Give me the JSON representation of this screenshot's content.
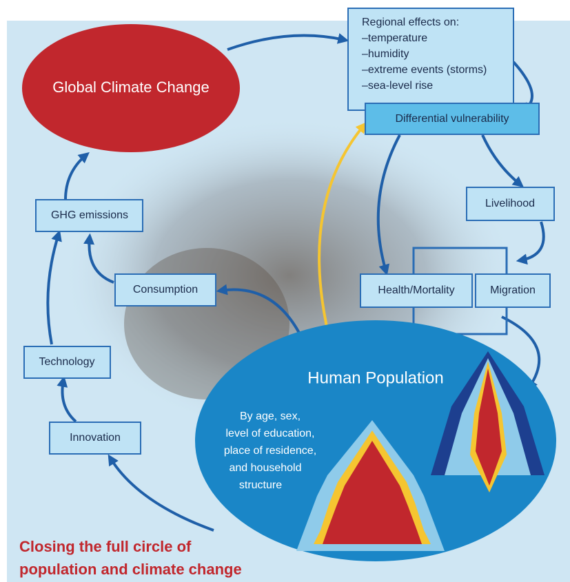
{
  "nodes": {
    "global": {
      "label": "Global Climate Change"
    },
    "regional": {
      "label": "Regional effects on:",
      "items": [
        "–temperature",
        "–humidity",
        "–extreme events (storms)",
        "–sea-level rise"
      ]
    },
    "vulnerability": {
      "label": "Differential vulnerability"
    },
    "livelihood": {
      "label": "Livelihood"
    },
    "health": {
      "label": "Health/Mortality"
    },
    "migration": {
      "label": "Migration"
    },
    "ghg": {
      "label": "GHG emissions"
    },
    "consumption": {
      "label": "Consumption"
    },
    "technology": {
      "label": "Technology"
    },
    "innovation": {
      "label": "Innovation"
    }
  },
  "population": {
    "title": "Human Population",
    "description": [
      "By age, sex,",
      "level of education,",
      "place of residence,",
      "and household",
      "structure"
    ]
  },
  "caption": [
    "Closing the full circle of",
    "population and climate change"
  ]
}
